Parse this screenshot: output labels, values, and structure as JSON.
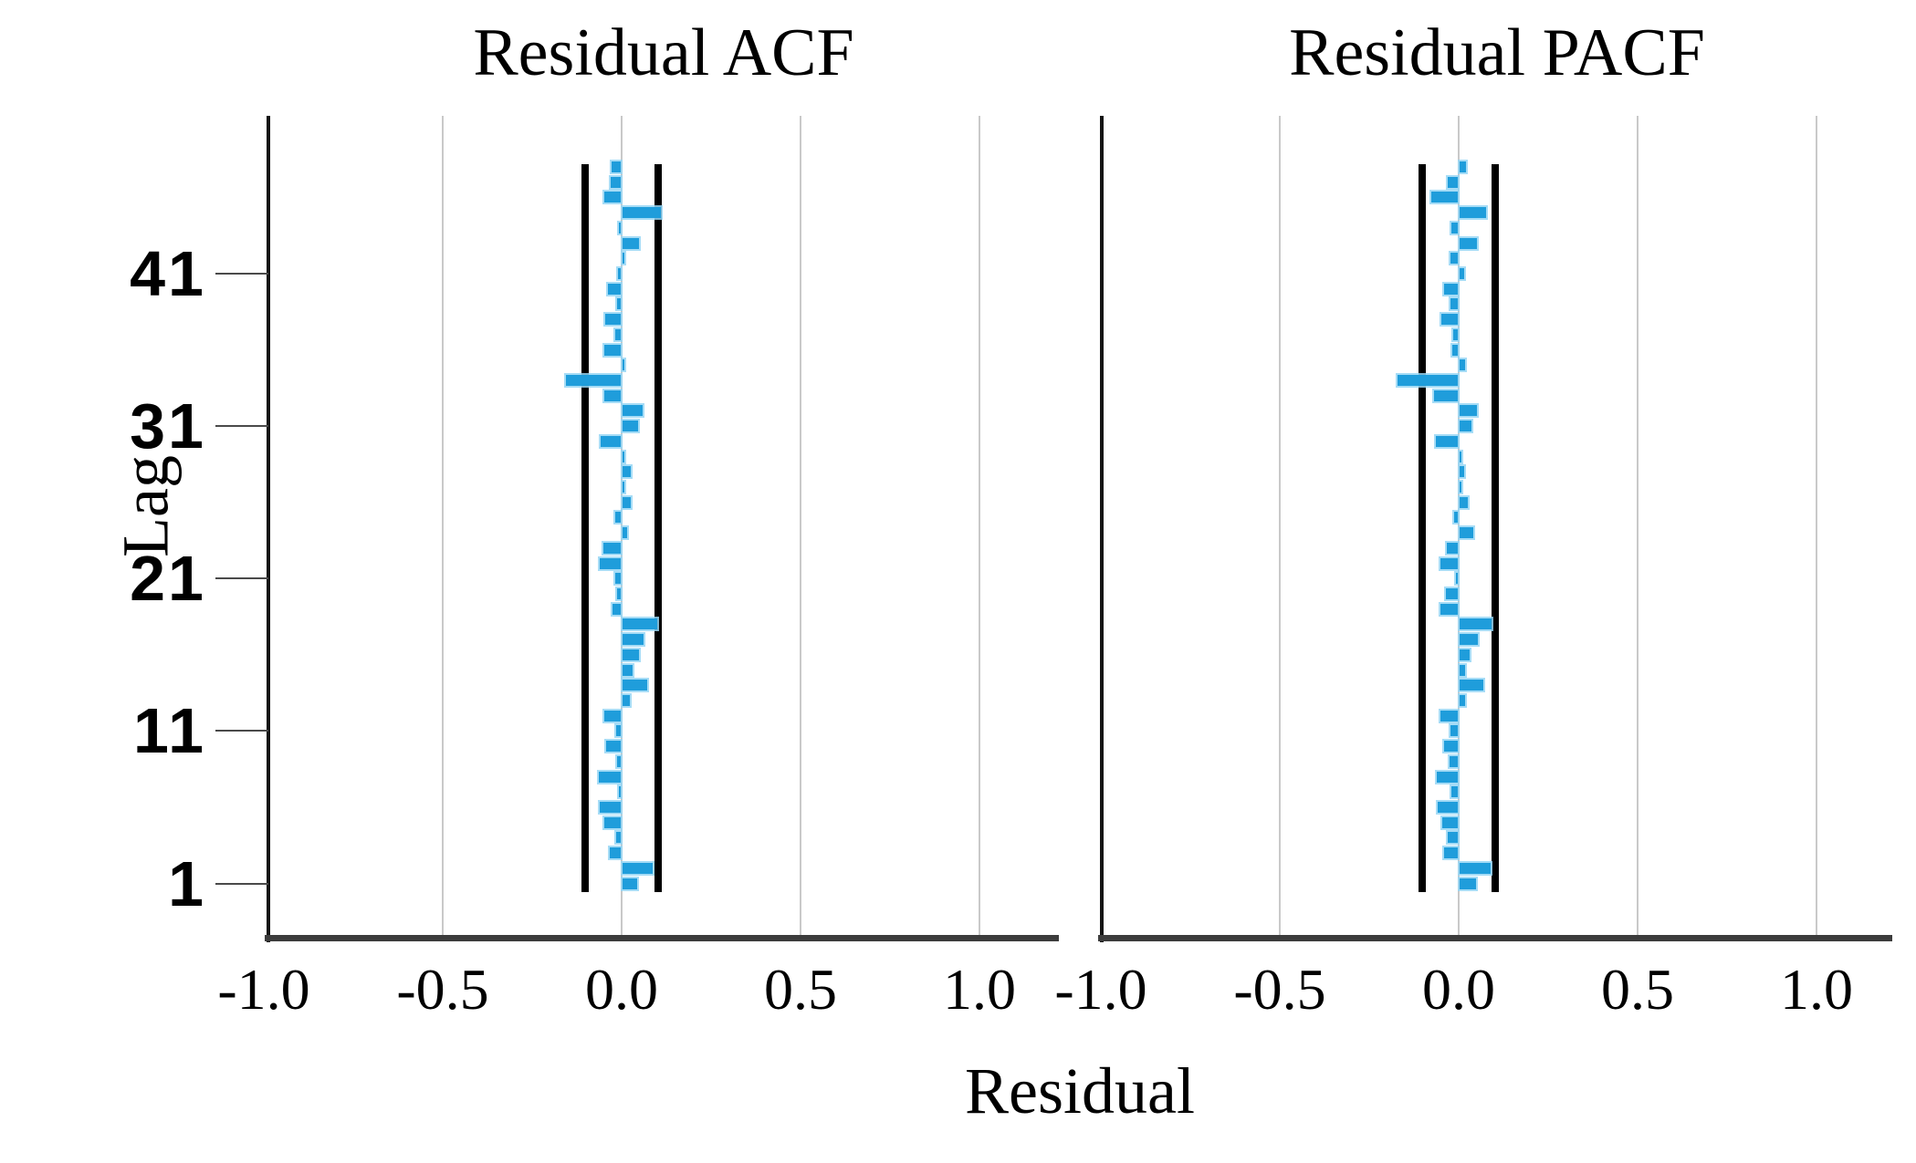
{
  "figure": {
    "xlabel": "Residual",
    "ylabel": "Lag",
    "background": "#ffffff",
    "bar_color": "#1f9ddb",
    "bar_halo_color": "#96d6f5",
    "grid_color": "#c9c9c9",
    "axis_color": "#3c3c3c",
    "spine_color": "#141414",
    "ci_line_color": "#000000",
    "text_color": "#000000"
  },
  "chart_data": [
    {
      "type": "bar",
      "orientation": "horizontal",
      "name": "acf",
      "title": "Residual ACF",
      "xlabel": "Residual",
      "ylabel": "Lag",
      "xlim": [
        -1.0,
        1.21
      ],
      "grid": true,
      "x_tick_values": [
        -1.0,
        -0.5,
        0.0,
        0.5,
        1.0
      ],
      "x_tick_labels": [
        "-1.0",
        "-0.5",
        "0.0",
        "0.5",
        "1.0"
      ],
      "y_tick_values": [
        1,
        11,
        21,
        31,
        41
      ],
      "y_tick_labels": [
        "1",
        "11",
        "21",
        "31",
        "41"
      ],
      "confidence_limit": 0.101,
      "lags": [
        1,
        2,
        3,
        4,
        5,
        6,
        7,
        8,
        9,
        10,
        11,
        12,
        13,
        14,
        15,
        16,
        17,
        18,
        19,
        20,
        21,
        22,
        23,
        24,
        25,
        26,
        27,
        28,
        29,
        30,
        31,
        32,
        33,
        34,
        35,
        36,
        37,
        38,
        39,
        40,
        41,
        42,
        43,
        44,
        45,
        46,
        47,
        48
      ],
      "values": [
        0.042,
        0.085,
        -0.03,
        -0.014,
        -0.045,
        -0.058,
        -0.005,
        -0.06,
        -0.01,
        -0.042,
        -0.013,
        -0.047,
        0.021,
        0.068,
        0.028,
        0.047,
        0.058,
        0.098,
        -0.024,
        -0.01,
        -0.015,
        -0.058,
        -0.048,
        0.013,
        -0.015,
        0.023,
        0.003,
        0.023,
        0.004,
        -0.057,
        0.044,
        0.055,
        -0.047,
        -0.152,
        0.004,
        -0.045,
        -0.015,
        -0.043,
        -0.011,
        -0.036,
        -0.007,
        0.005,
        0.047,
        -0.004,
        0.106,
        -0.046,
        -0.028,
        -0.026
      ]
    },
    {
      "type": "bar",
      "orientation": "horizontal",
      "name": "pacf",
      "title": "Residual PACF",
      "xlabel": "Residual",
      "ylabel": "Lag",
      "xlim": [
        -1.0,
        1.21
      ],
      "grid": true,
      "x_tick_values": [
        -1.0,
        -0.5,
        0.0,
        0.5,
        1.0
      ],
      "x_tick_labels": [
        "-1.0",
        "-0.5",
        "0.0",
        "0.5",
        "1.0"
      ],
      "y_tick_values": [
        1,
        11,
        21,
        31,
        41
      ],
      "y_tick_labels": [
        "1",
        "11",
        "21",
        "31",
        "41"
      ],
      "confidence_limit": 0.101,
      "lags": [
        1,
        2,
        3,
        4,
        5,
        6,
        7,
        8,
        9,
        10,
        11,
        12,
        13,
        14,
        15,
        16,
        17,
        18,
        19,
        20,
        21,
        22,
        23,
        24,
        25,
        26,
        27,
        28,
        29,
        30,
        31,
        32,
        33,
        34,
        35,
        36,
        37,
        38,
        39,
        40,
        41,
        42,
        43,
        44,
        45,
        46,
        47,
        48
      ],
      "values": [
        0.046,
        0.087,
        -0.038,
        -0.027,
        -0.044,
        -0.056,
        -0.017,
        -0.059,
        -0.023,
        -0.037,
        -0.02,
        -0.048,
        0.015,
        0.066,
        0.015,
        0.028,
        0.051,
        0.089,
        -0.048,
        -0.033,
        -0.006,
        -0.049,
        -0.031,
        0.038,
        -0.01,
        0.023,
        0.002,
        0.013,
        0.003,
        -0.061,
        0.032,
        0.049,
        -0.066,
        -0.169,
        0.015,
        -0.016,
        -0.014,
        -0.046,
        -0.02,
        -0.039,
        0.013,
        -0.02,
        0.048,
        -0.018,
        0.075,
        -0.074,
        -0.027,
        0.018
      ]
    }
  ]
}
